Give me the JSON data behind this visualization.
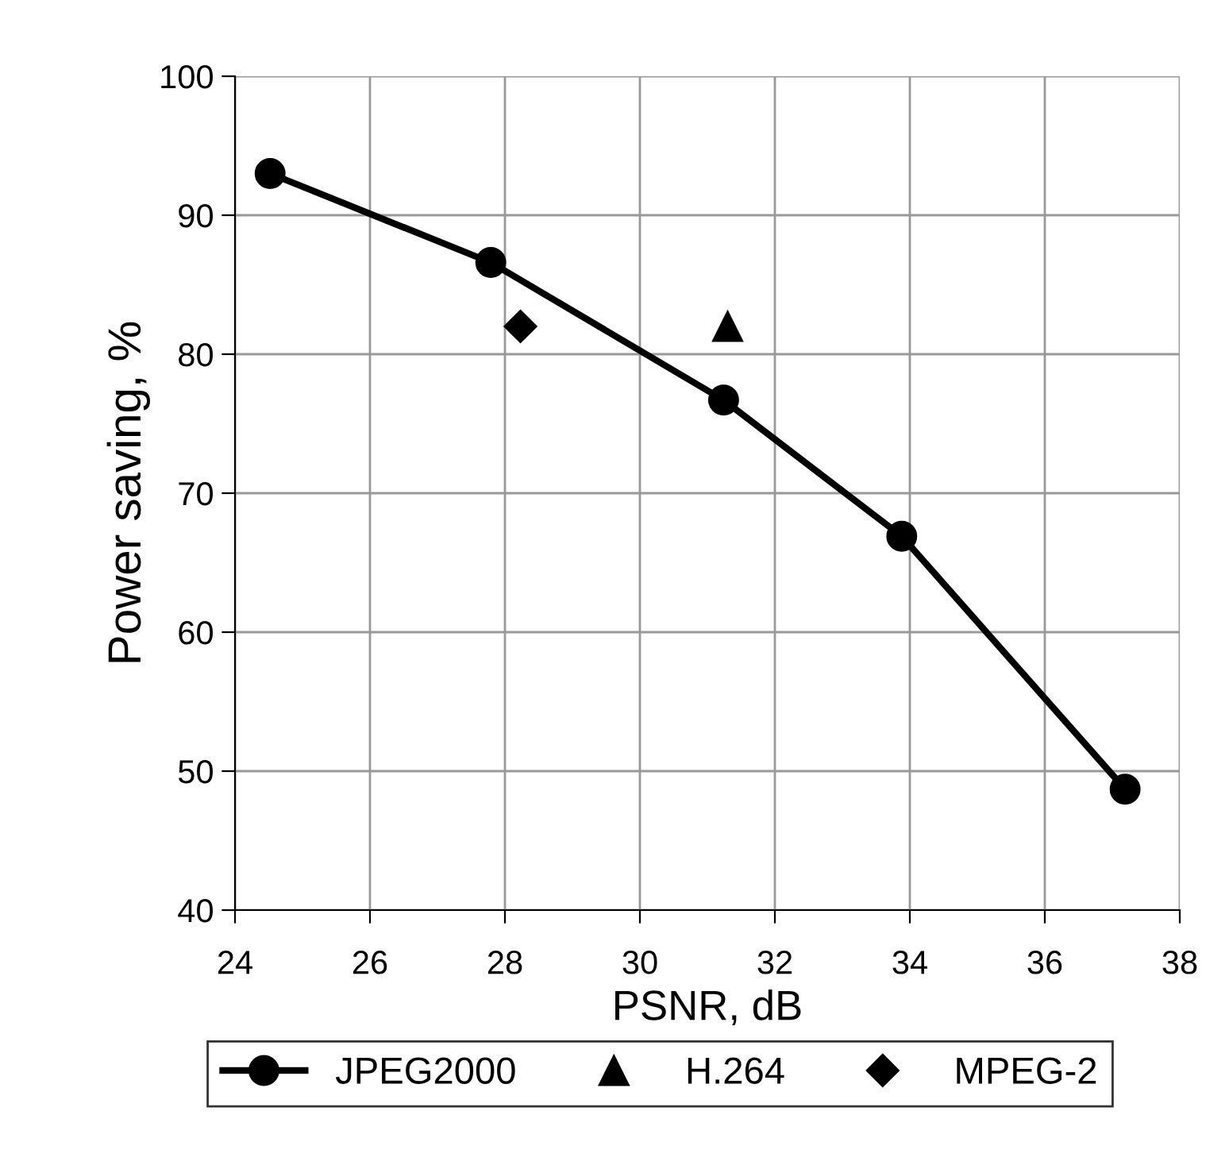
{
  "chart_data": {
    "type": "line",
    "xlabel": "PSNR, dB",
    "ylabel": "Power saving, %",
    "xlim": [
      24,
      38
    ],
    "xticks": [
      24,
      26,
      28,
      30,
      32,
      34,
      36,
      38
    ],
    "ylim": [
      40,
      100
    ],
    "yticks": [
      40,
      50,
      60,
      70,
      80,
      90,
      100
    ],
    "grid": true,
    "legend": "bottom",
    "series": [
      {
        "name": "JPEG2000",
        "marker": "circle",
        "line_style": "solid",
        "color": "#000000",
        "x": [
          24.52,
          27.79,
          31.24,
          33.88,
          37.19
        ],
        "values": [
          93.0,
          86.6,
          76.7,
          66.9,
          48.7
        ]
      },
      {
        "name": "H.264",
        "type": "scatter",
        "marker": "triangle",
        "color": "#000000",
        "x": [
          31.3
        ],
        "values": [
          82.0
        ]
      },
      {
        "name": "MPEG-2",
        "type": "scatter",
        "marker": "diamond",
        "color": "#000000",
        "x": [
          28.23
        ],
        "values": [
          82.0
        ]
      }
    ]
  }
}
